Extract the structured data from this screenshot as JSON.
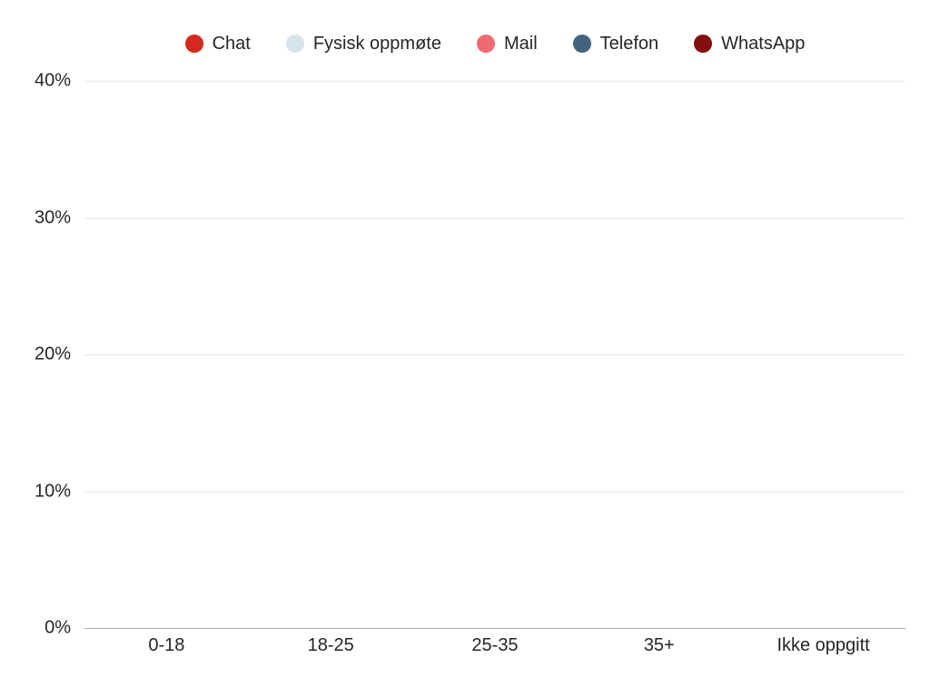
{
  "chart_data": {
    "type": "bar",
    "title": "",
    "categories": [
      "0-18",
      "18-25",
      "25-35",
      "35+",
      "Ikke oppgitt"
    ],
    "series": [
      {
        "name": "Chat",
        "color": "#d5281e",
        "values": [
          0,
          0,
          0,
          0,
          0
        ]
      },
      {
        "name": "Fysisk oppmøte",
        "color": "#d6e3eb",
        "values": [
          0,
          0,
          0,
          0,
          0
        ]
      },
      {
        "name": "Mail",
        "color": "#ef6a72",
        "values": [
          0,
          0,
          0,
          0,
          0
        ]
      },
      {
        "name": "Telefon",
        "color": "#41657d",
        "values": [
          0,
          0,
          0,
          0,
          0
        ]
      },
      {
        "name": "WhatsApp",
        "color": "#830f0c",
        "values": [
          0,
          0,
          0,
          0,
          0
        ]
      }
    ],
    "xlabel": "",
    "ylabel": "",
    "ylim": [
      0,
      40
    ],
    "yticks": [
      {
        "value": 0,
        "label": "0%"
      },
      {
        "value": 10,
        "label": "10%"
      },
      {
        "value": 20,
        "label": "20%"
      },
      {
        "value": 30,
        "label": "30%"
      },
      {
        "value": 40,
        "label": "40%"
      }
    ],
    "grid": true,
    "legend_position": "top"
  },
  "colors": {
    "background": "#ffffff",
    "gridline": "#e9e9e9",
    "axis_line": "#b0b0b0",
    "text": "#262626"
  }
}
